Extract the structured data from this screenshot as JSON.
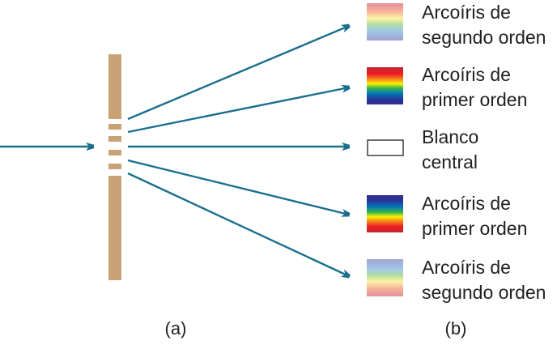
{
  "colors": {
    "grating": "#c8a275",
    "ray": "#1b6f8e",
    "text": "#231f20"
  },
  "rays": [
    {
      "name": "second-order-upper",
      "swatch": "faded-rainbow-top-red"
    },
    {
      "name": "first-order-upper",
      "swatch": "rainbow-top-red"
    },
    {
      "name": "central",
      "swatch": "white"
    },
    {
      "name": "first-order-lower",
      "swatch": "rainbow-top-violet"
    },
    {
      "name": "second-order-lower",
      "swatch": "faded-rainbow-top-violet"
    }
  ],
  "labels": {
    "second_upper": [
      "Arcoíris de",
      "segundo orden"
    ],
    "first_upper": [
      "Arcoíris de",
      "primer orden"
    ],
    "central": [
      "Blanco",
      "central"
    ],
    "first_lower": [
      "Arcoíris de",
      "primer orden"
    ],
    "second_lower": [
      "Arcoíris de",
      "segundo orden"
    ]
  },
  "captions": {
    "a": "(a)",
    "b": "(b)"
  }
}
